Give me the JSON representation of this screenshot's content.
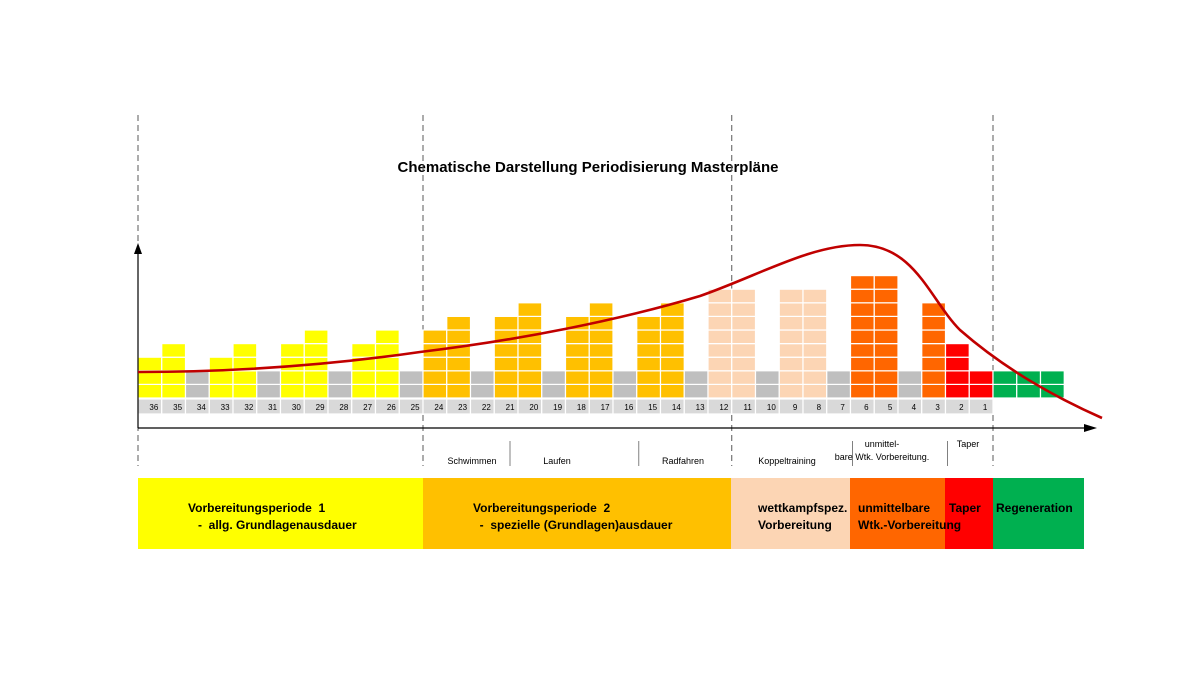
{
  "chart_data": {
    "type": "bar",
    "title": "Chematische Darstellung Periodisierung Masterpläne",
    "xlabel": "",
    "ylabel": "",
    "x_direction": "descending",
    "weeks": [
      36,
      35,
      34,
      33,
      32,
      31,
      30,
      29,
      28,
      27,
      26,
      25,
      24,
      23,
      22,
      21,
      20,
      19,
      18,
      17,
      16,
      15,
      14,
      13,
      12,
      11,
      10,
      9,
      8,
      7,
      6,
      5,
      4,
      3,
      2,
      1
    ],
    "blocks": [
      3,
      4,
      2,
      3,
      4,
      2,
      4,
      5,
      2,
      4,
      5,
      2,
      5,
      6,
      2,
      6,
      7,
      2,
      6,
      7,
      2,
      6,
      7,
      2,
      8,
      8,
      2,
      8,
      8,
      2,
      9,
      9,
      2,
      7,
      4,
      2
    ],
    "week_colors": [
      "#ffff00",
      "#ffff00",
      "#bfbfbf",
      "#ffff00",
      "#ffff00",
      "#bfbfbf",
      "#ffff00",
      "#ffff00",
      "#bfbfbf",
      "#ffff00",
      "#ffff00",
      "#bfbfbf",
      "#ffc000",
      "#ffc000",
      "#bfbfbf",
      "#ffc000",
      "#ffc000",
      "#bfbfbf",
      "#ffc000",
      "#ffc000",
      "#bfbfbf",
      "#ffc000",
      "#ffc000",
      "#bfbfbf",
      "#fcd5b4",
      "#fcd5b4",
      "#bfbfbf",
      "#fcd5b4",
      "#fcd5b4",
      "#bfbfbf",
      "#ff6600",
      "#ff6600",
      "#bfbfbf",
      "#ff6600",
      "#ff0000",
      "#ff0000"
    ],
    "regeneration": {
      "blocks": 2,
      "columns": 3,
      "color": "#00b050"
    },
    "curve_color": "#c00000",
    "sub_labels": [
      "Schwimmen",
      "Laufen",
      "Radfahren",
      "Koppeltraining",
      "unmittel-\nbare Wtk. Vorbereitung.",
      "Taper"
    ],
    "phases": [
      {
        "label": "Vorbereitungsperiode  1\n   -  allg. Grundlagenausdauer",
        "color": "#ffff00"
      },
      {
        "label": "Vorbereitungsperiode  2\n  -  spezielle (Grundlagen)ausdauer",
        "color": "#ffc000"
      },
      {
        "label": "wettkampfspez.\nVorbereitung",
        "color": "#fcd5b4"
      },
      {
        "label": "unmittelbare\nWtk.-Vorbereitung",
        "color": "#ff6600"
      },
      {
        "label": "Taper",
        "color": "#ff0000"
      },
      {
        "label": "Regeneration",
        "color": "#00b050"
      }
    ]
  }
}
